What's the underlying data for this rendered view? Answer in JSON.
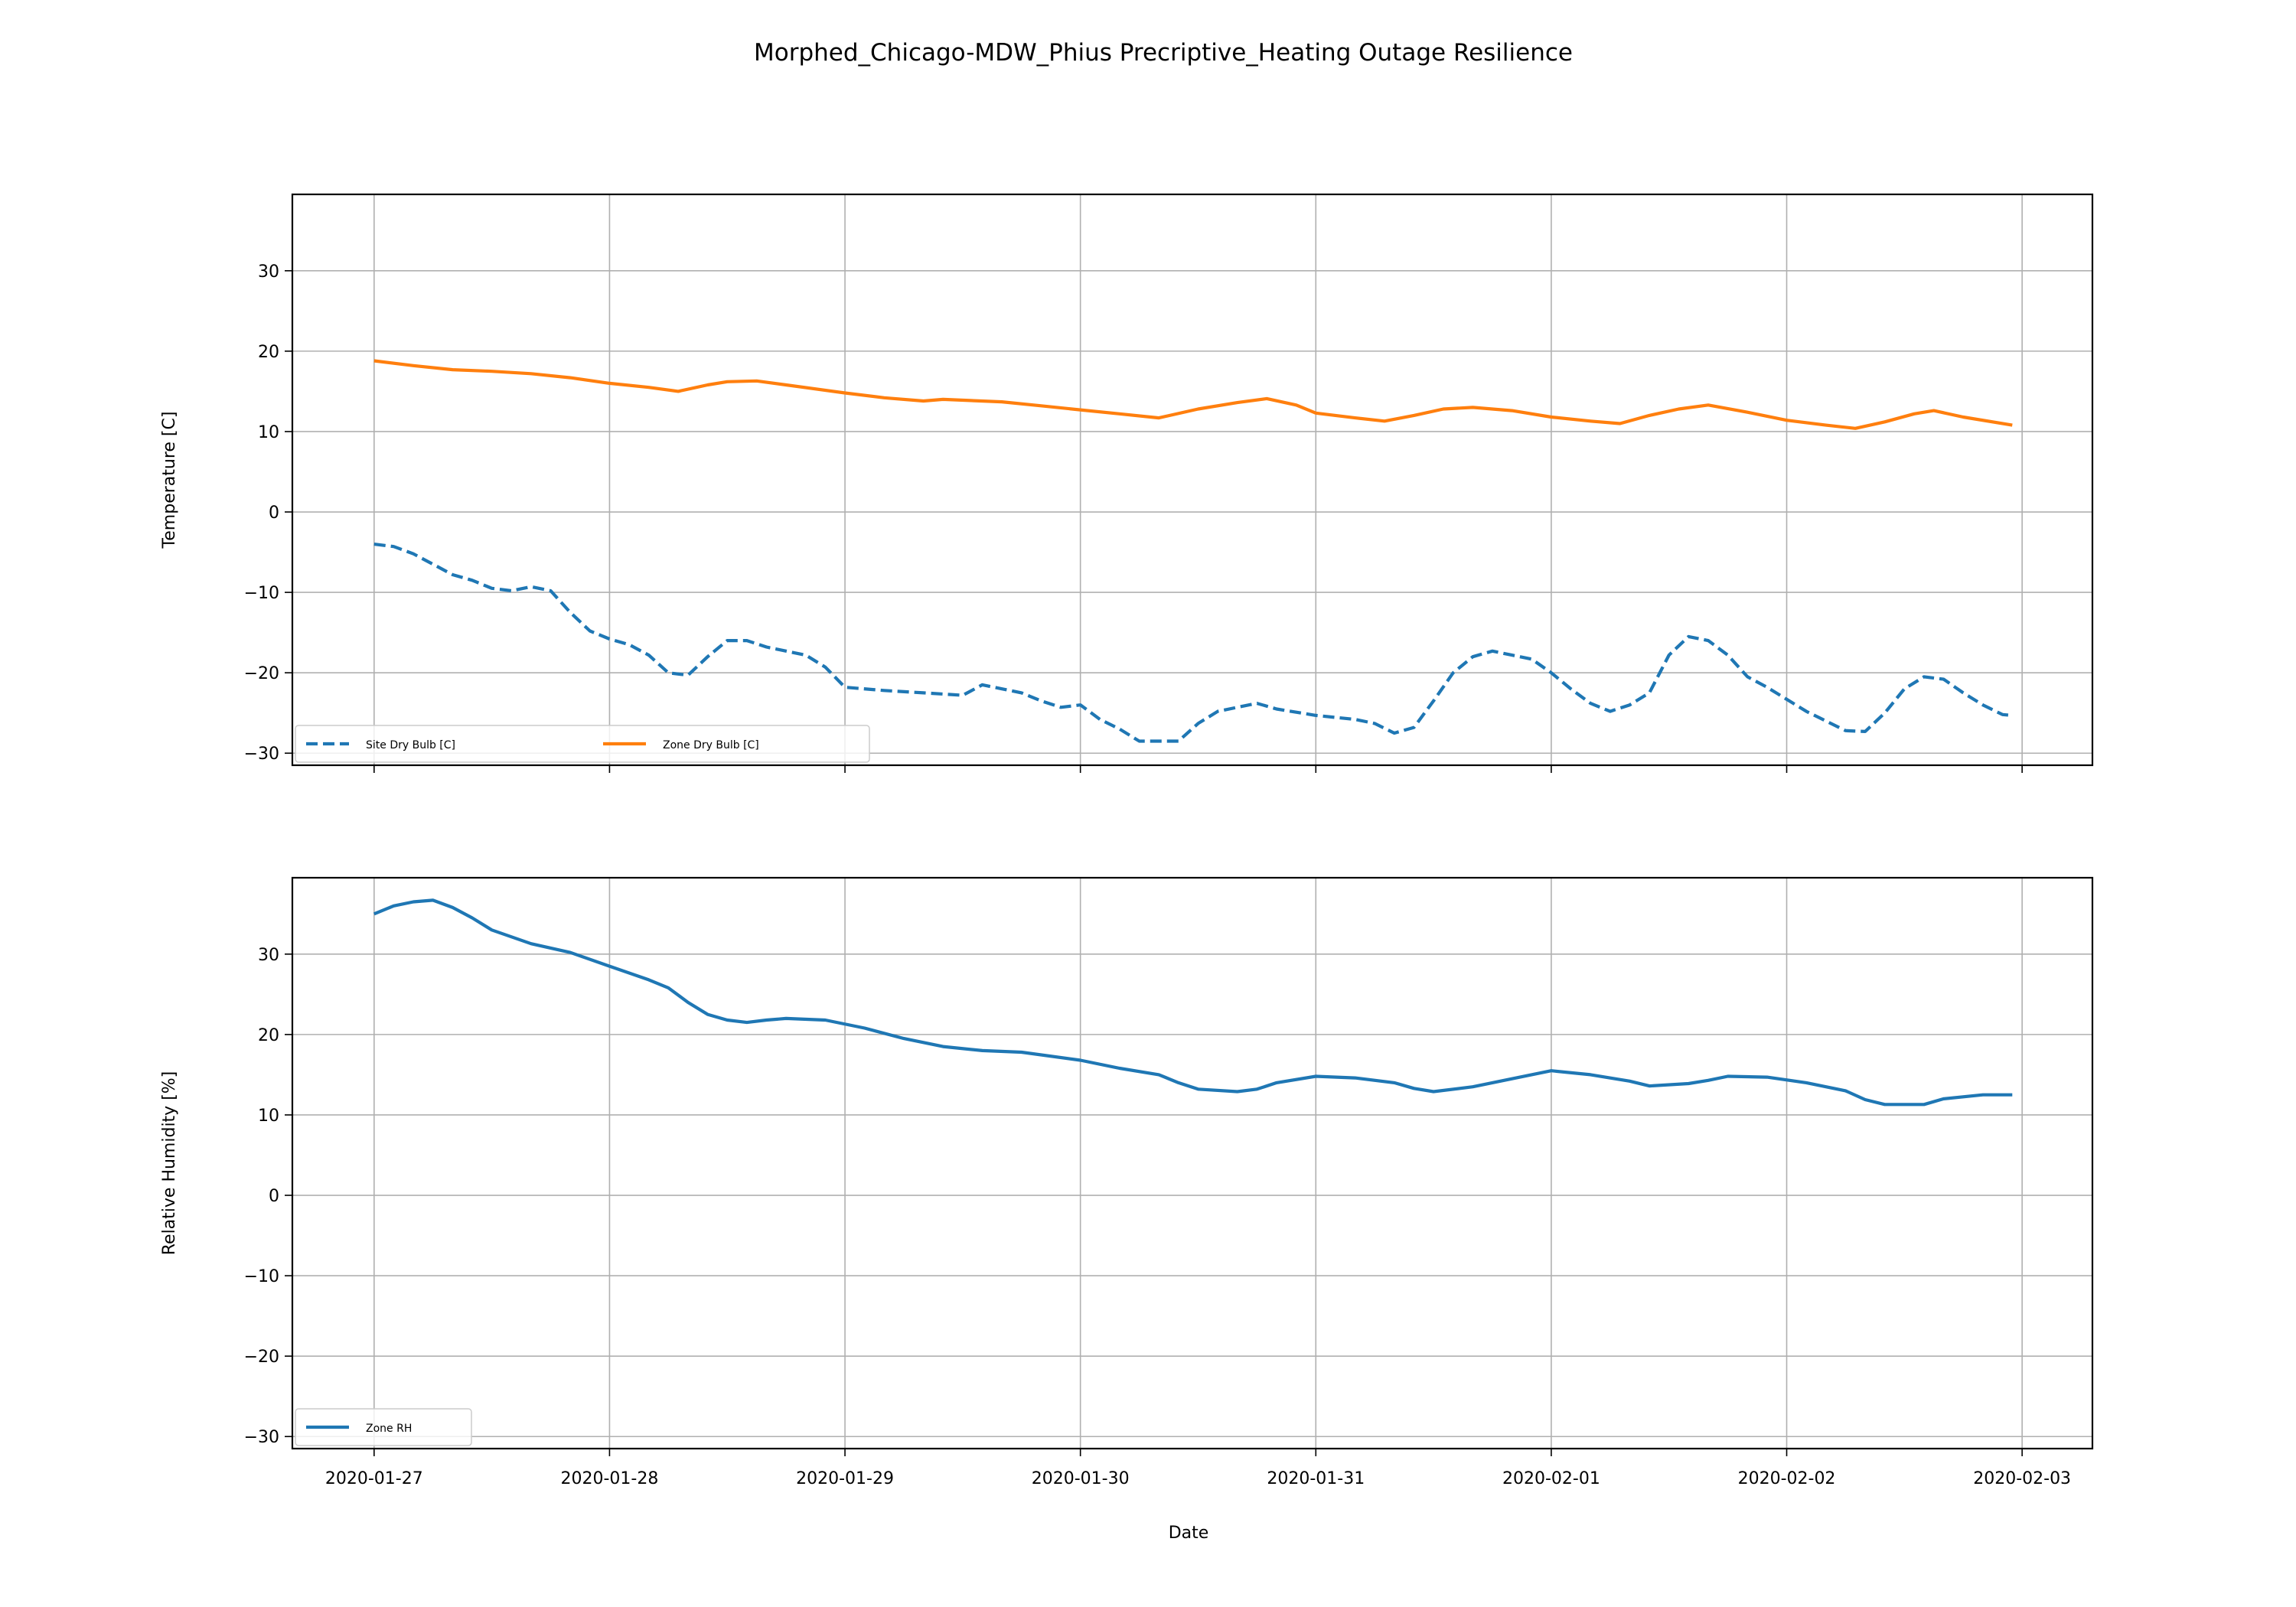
{
  "title": "Morphed_Chicago-MDW_Phius Precriptive_Heating Outage Resilience",
  "xlabel": "Date",
  "x_ticks": [
    "2020-01-27",
    "2020-01-28",
    "2020-01-29",
    "2020-01-30",
    "2020-01-31",
    "2020-02-01",
    "2020-02-02",
    "2020-02-03"
  ],
  "colors": {
    "site_dry_bulb": "#1f77b4",
    "zone_dry_bulb": "#ff7f0e",
    "zone_rh": "#1f77b4",
    "grid": "#b0b0b0"
  },
  "chart_data": [
    {
      "type": "line",
      "ylabel": "Temperature [C]",
      "ylim": [
        -31.5,
        39.5
      ],
      "xlim": [
        "2020-01-26 15:40",
        "2020-02-03 07:10"
      ],
      "y_ticks": [
        "30",
        "20",
        "10",
        "0",
        "−10",
        "−20",
        "−30"
      ],
      "grid": true,
      "legend": "lower-left",
      "series": [
        {
          "name": "Site Dry Bulb [C]",
          "style": "dashed",
          "points": [
            [
              "2020-01-27 00:00",
              -4.0
            ],
            [
              "2020-01-27 02:00",
              -4.3
            ],
            [
              "2020-01-27 04:00",
              -5.2
            ],
            [
              "2020-01-27 06:00",
              -6.5
            ],
            [
              "2020-01-27 08:00",
              -7.8
            ],
            [
              "2020-01-27 10:00",
              -8.5
            ],
            [
              "2020-01-27 12:00",
              -9.5
            ],
            [
              "2020-01-27 14:00",
              -9.8
            ],
            [
              "2020-01-27 16:00",
              -9.3
            ],
            [
              "2020-01-27 18:00",
              -9.8
            ],
            [
              "2020-01-27 20:00",
              -12.5
            ],
            [
              "2020-01-27 22:00",
              -14.8
            ],
            [
              "2020-01-28 00:00",
              -15.8
            ],
            [
              "2020-01-28 02:00",
              -16.5
            ],
            [
              "2020-01-28 04:00",
              -17.8
            ],
            [
              "2020-01-28 06:00",
              -20.0
            ],
            [
              "2020-01-28 08:00",
              -20.3
            ],
            [
              "2020-01-28 10:00",
              -18.0
            ],
            [
              "2020-01-28 12:00",
              -16.0
            ],
            [
              "2020-01-28 14:00",
              -16.0
            ],
            [
              "2020-01-28 16:00",
              -16.8
            ],
            [
              "2020-01-28 18:00",
              -17.3
            ],
            [
              "2020-01-28 20:00",
              -17.8
            ],
            [
              "2020-01-28 22:00",
              -19.3
            ],
            [
              "2020-01-29 00:00",
              -21.8
            ],
            [
              "2020-01-29 04:00",
              -22.2
            ],
            [
              "2020-01-29 08:00",
              -22.5
            ],
            [
              "2020-01-29 12:00",
              -22.8
            ],
            [
              "2020-01-29 14:00",
              -21.5
            ],
            [
              "2020-01-29 16:00",
              -22.0
            ],
            [
              "2020-01-29 18:00",
              -22.5
            ],
            [
              "2020-01-29 20:00",
              -23.5
            ],
            [
              "2020-01-29 22:00",
              -24.3
            ],
            [
              "2020-01-30 00:00",
              -24.0
            ],
            [
              "2020-01-30 02:00",
              -25.8
            ],
            [
              "2020-01-30 04:00",
              -27.0
            ],
            [
              "2020-01-30 06:00",
              -28.5
            ],
            [
              "2020-01-30 10:00",
              -28.5
            ],
            [
              "2020-01-30 12:00",
              -26.3
            ],
            [
              "2020-01-30 14:00",
              -24.8
            ],
            [
              "2020-01-30 16:00",
              -24.3
            ],
            [
              "2020-01-30 18:00",
              -23.8
            ],
            [
              "2020-01-30 20:00",
              -24.5
            ],
            [
              "2020-01-31 00:00",
              -25.3
            ],
            [
              "2020-01-31 04:00",
              -25.8
            ],
            [
              "2020-01-31 06:00",
              -26.3
            ],
            [
              "2020-01-31 08:00",
              -27.5
            ],
            [
              "2020-01-31 10:00",
              -26.8
            ],
            [
              "2020-01-31 12:00",
              -23.5
            ],
            [
              "2020-01-31 14:00",
              -20.0
            ],
            [
              "2020-01-31 16:00",
              -18.0
            ],
            [
              "2020-01-31 18:00",
              -17.3
            ],
            [
              "2020-01-31 20:00",
              -17.8
            ],
            [
              "2020-01-31 22:00",
              -18.3
            ],
            [
              "2020-02-01 00:00",
              -20.0
            ],
            [
              "2020-02-01 02:00",
              -22.0
            ],
            [
              "2020-02-01 04:00",
              -23.8
            ],
            [
              "2020-02-01 06:00",
              -24.8
            ],
            [
              "2020-02-01 08:00",
              -24.0
            ],
            [
              "2020-02-01 10:00",
              -22.5
            ],
            [
              "2020-02-01 12:00",
              -17.8
            ],
            [
              "2020-02-01 14:00",
              -15.5
            ],
            [
              "2020-02-01 16:00",
              -16.0
            ],
            [
              "2020-02-01 18:00",
              -17.8
            ],
            [
              "2020-02-01 20:00",
              -20.5
            ],
            [
              "2020-02-01 22:00",
              -21.8
            ],
            [
              "2020-02-02 00:00",
              -23.3
            ],
            [
              "2020-02-02 02:00",
              -24.8
            ],
            [
              "2020-02-02 04:00",
              -26.0
            ],
            [
              "2020-02-02 06:00",
              -27.2
            ],
            [
              "2020-02-02 08:00",
              -27.3
            ],
            [
              "2020-02-02 10:00",
              -25.0
            ],
            [
              "2020-02-02 12:00",
              -22.0
            ],
            [
              "2020-02-02 14:00",
              -20.5
            ],
            [
              "2020-02-02 16:00",
              -20.8
            ],
            [
              "2020-02-02 18:00",
              -22.5
            ],
            [
              "2020-02-02 20:00",
              -24.0
            ],
            [
              "2020-02-02 22:00",
              -25.2
            ],
            [
              "2020-02-02 23:00",
              -25.3
            ]
          ]
        },
        {
          "name": "Zone Dry Bulb [C]",
          "style": "solid",
          "points": [
            [
              "2020-01-27 00:00",
              18.8
            ],
            [
              "2020-01-27 04:00",
              18.2
            ],
            [
              "2020-01-27 08:00",
              17.7
            ],
            [
              "2020-01-27 12:00",
              17.5
            ],
            [
              "2020-01-27 16:00",
              17.2
            ],
            [
              "2020-01-27 20:00",
              16.7
            ],
            [
              "2020-01-28 00:00",
              16.0
            ],
            [
              "2020-01-28 04:00",
              15.5
            ],
            [
              "2020-01-28 07:00",
              15.0
            ],
            [
              "2020-01-28 10:00",
              15.8
            ],
            [
              "2020-01-28 12:00",
              16.2
            ],
            [
              "2020-01-28 15:00",
              16.3
            ],
            [
              "2020-01-28 18:00",
              15.8
            ],
            [
              "2020-01-29 00:00",
              14.8
            ],
            [
              "2020-01-29 04:00",
              14.2
            ],
            [
              "2020-01-29 08:00",
              13.8
            ],
            [
              "2020-01-29 10:00",
              14.0
            ],
            [
              "2020-01-29 16:00",
              13.7
            ],
            [
              "2020-01-29 20:00",
              13.2
            ],
            [
              "2020-01-30 00:00",
              12.7
            ],
            [
              "2020-01-30 04:00",
              12.2
            ],
            [
              "2020-01-30 08:00",
              11.7
            ],
            [
              "2020-01-30 12:00",
              12.8
            ],
            [
              "2020-01-30 16:00",
              13.6
            ],
            [
              "2020-01-30 19:00",
              14.1
            ],
            [
              "2020-01-30 22:00",
              13.3
            ],
            [
              "2020-01-31 00:00",
              12.3
            ],
            [
              "2020-01-31 04:00",
              11.7
            ],
            [
              "2020-01-31 07:00",
              11.3
            ],
            [
              "2020-01-31 10:00",
              12.0
            ],
            [
              "2020-01-31 13:00",
              12.8
            ],
            [
              "2020-01-31 16:00",
              13.0
            ],
            [
              "2020-01-31 20:00",
              12.6
            ],
            [
              "2020-02-01 00:00",
              11.8
            ],
            [
              "2020-02-01 04:00",
              11.3
            ],
            [
              "2020-02-01 07:00",
              11.0
            ],
            [
              "2020-02-01 10:00",
              12.0
            ],
            [
              "2020-02-01 13:00",
              12.8
            ],
            [
              "2020-02-01 16:00",
              13.3
            ],
            [
              "2020-02-01 20:00",
              12.4
            ],
            [
              "2020-02-02 00:00",
              11.4
            ],
            [
              "2020-02-02 04:00",
              10.8
            ],
            [
              "2020-02-02 07:00",
              10.4
            ],
            [
              "2020-02-02 10:00",
              11.2
            ],
            [
              "2020-02-02 13:00",
              12.2
            ],
            [
              "2020-02-02 15:00",
              12.6
            ],
            [
              "2020-02-02 18:00",
              11.8
            ],
            [
              "2020-02-02 23:00",
              10.8
            ]
          ]
        }
      ]
    },
    {
      "type": "line",
      "ylabel": "Relative Humidity [%]",
      "ylim": [
        -31.5,
        39.5
      ],
      "xlim": [
        "2020-01-26 15:40",
        "2020-02-03 07:10"
      ],
      "y_ticks": [
        "30",
        "20",
        "10",
        "0",
        "−10",
        "−20",
        "−30"
      ],
      "grid": true,
      "legend": "lower-left",
      "series": [
        {
          "name": "Zone RH",
          "style": "solid",
          "points": [
            [
              "2020-01-27 00:00",
              35.0
            ],
            [
              "2020-01-27 02:00",
              36.0
            ],
            [
              "2020-01-27 04:00",
              36.5
            ],
            [
              "2020-01-27 06:00",
              36.7
            ],
            [
              "2020-01-27 08:00",
              35.8
            ],
            [
              "2020-01-27 10:00",
              34.5
            ],
            [
              "2020-01-27 12:00",
              33.0
            ],
            [
              "2020-01-27 16:00",
              31.3
            ],
            [
              "2020-01-27 20:00",
              30.2
            ],
            [
              "2020-01-28 00:00",
              28.5
            ],
            [
              "2020-01-28 04:00",
              26.8
            ],
            [
              "2020-01-28 06:00",
              25.8
            ],
            [
              "2020-01-28 08:00",
              24.0
            ],
            [
              "2020-01-28 10:00",
              22.5
            ],
            [
              "2020-01-28 12:00",
              21.8
            ],
            [
              "2020-01-28 14:00",
              21.5
            ],
            [
              "2020-01-28 16:00",
              21.8
            ],
            [
              "2020-01-28 18:00",
              22.0
            ],
            [
              "2020-01-28 22:00",
              21.8
            ],
            [
              "2020-01-29 02:00",
              20.8
            ],
            [
              "2020-01-29 06:00",
              19.5
            ],
            [
              "2020-01-29 10:00",
              18.5
            ],
            [
              "2020-01-29 14:00",
              18.0
            ],
            [
              "2020-01-29 18:00",
              17.8
            ],
            [
              "2020-01-30 00:00",
              16.8
            ],
            [
              "2020-01-30 04:00",
              15.8
            ],
            [
              "2020-01-30 08:00",
              15.0
            ],
            [
              "2020-01-30 10:00",
              14.0
            ],
            [
              "2020-01-30 12:00",
              13.2
            ],
            [
              "2020-01-30 16:00",
              12.9
            ],
            [
              "2020-01-30 18:00",
              13.2
            ],
            [
              "2020-01-30 20:00",
              14.0
            ],
            [
              "2020-01-31 00:00",
              14.8
            ],
            [
              "2020-01-31 04:00",
              14.6
            ],
            [
              "2020-01-31 08:00",
              14.0
            ],
            [
              "2020-01-31 10:00",
              13.3
            ],
            [
              "2020-01-31 12:00",
              12.9
            ],
            [
              "2020-01-31 16:00",
              13.5
            ],
            [
              "2020-01-31 20:00",
              14.5
            ],
            [
              "2020-02-01 00:00",
              15.5
            ],
            [
              "2020-02-01 04:00",
              15.0
            ],
            [
              "2020-02-01 08:00",
              14.2
            ],
            [
              "2020-02-01 10:00",
              13.6
            ],
            [
              "2020-02-01 14:00",
              13.9
            ],
            [
              "2020-02-01 16:00",
              14.3
            ],
            [
              "2020-02-01 18:00",
              14.8
            ],
            [
              "2020-02-01 22:00",
              14.7
            ],
            [
              "2020-02-02 02:00",
              14.0
            ],
            [
              "2020-02-02 06:00",
              13.0
            ],
            [
              "2020-02-02 08:00",
              11.9
            ],
            [
              "2020-02-02 10:00",
              11.3
            ],
            [
              "2020-02-02 14:00",
              11.3
            ],
            [
              "2020-02-02 16:00",
              12.0
            ],
            [
              "2020-02-02 20:00",
              12.5
            ],
            [
              "2020-02-02 23:00",
              12.5
            ]
          ]
        }
      ]
    }
  ]
}
